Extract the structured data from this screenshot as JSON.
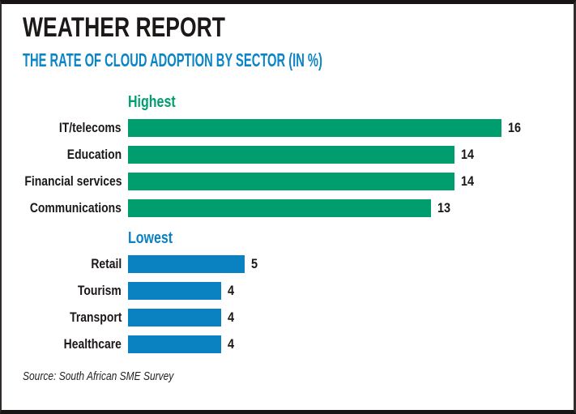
{
  "header": {
    "title": "WEATHER REPORT",
    "subtitle": "THE RATE OF CLOUD ADOPTION BY SECTOR (IN %)"
  },
  "colors": {
    "title": "#1d1818",
    "subtitle": "#0c85c7",
    "highest_green": "#009e6e",
    "lowest_blue": "#0a82c2",
    "source_text": "#262121"
  },
  "chart_data": {
    "type": "bar",
    "orientation": "horizontal",
    "title": "WEATHER REPORT",
    "subtitle": "THE RATE OF CLOUD ADOPTION BY SECTOR (IN %)",
    "value_unit": "%",
    "xlim": [
      0,
      16
    ],
    "grid": false,
    "legend": false,
    "value_labels": "right-of-bar",
    "groups": [
      {
        "label": "Highest",
        "color": "#009e6e",
        "categories": [
          "IT/telecoms",
          "Education",
          "Financial services",
          "Communications"
        ],
        "values": [
          16,
          14,
          14,
          13
        ]
      },
      {
        "label": "Lowest",
        "color": "#0a82c2",
        "categories": [
          "Retail",
          "Tourism",
          "Transport",
          "Healthcare"
        ],
        "values": [
          5,
          4,
          4,
          4
        ]
      }
    ]
  },
  "footer": {
    "source": "Source: South African SME Survey"
  }
}
